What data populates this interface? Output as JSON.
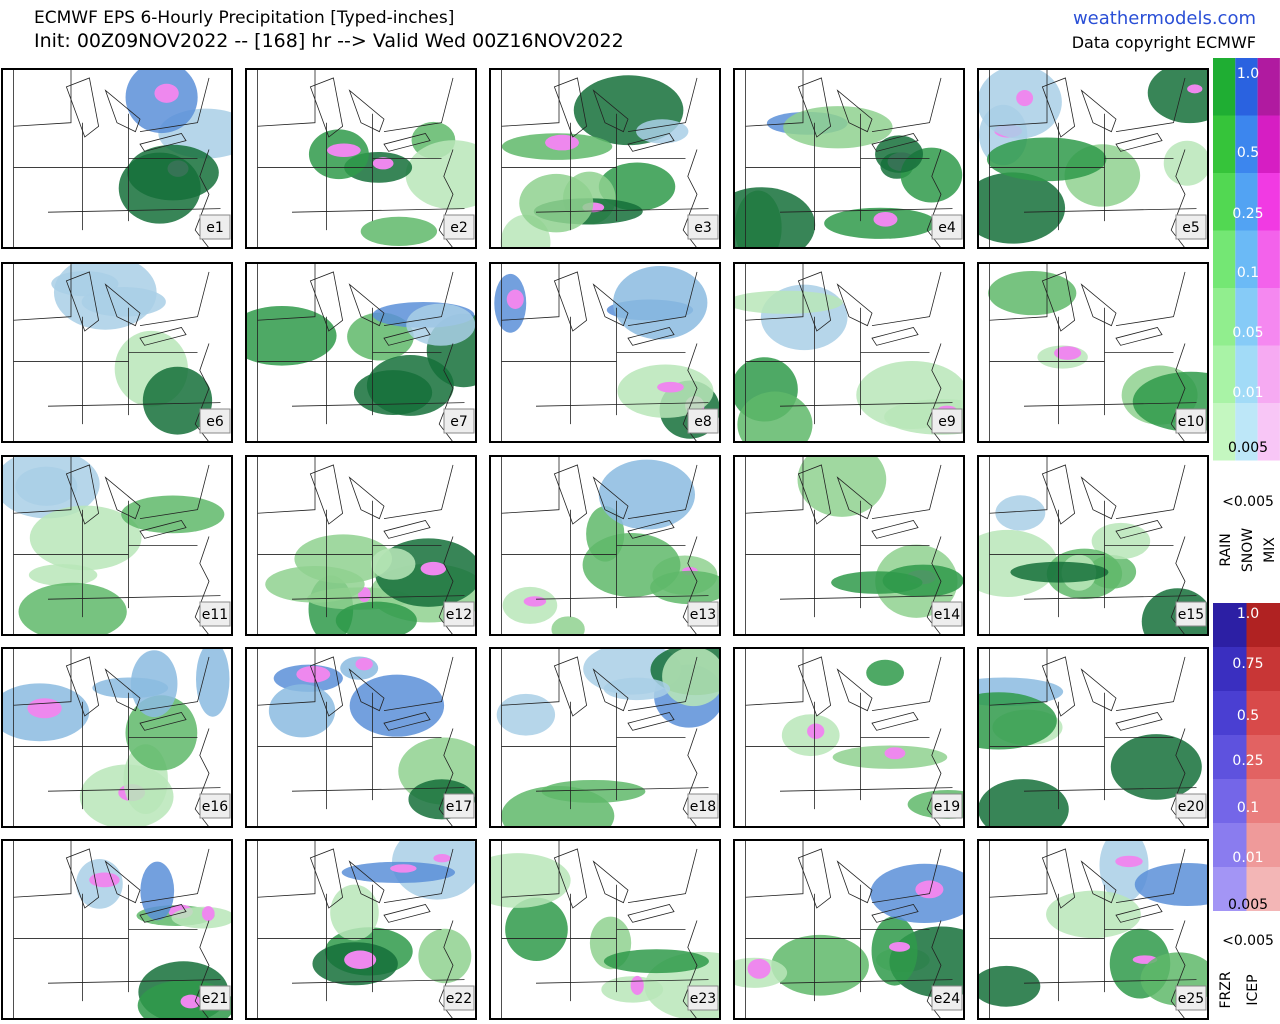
{
  "header": {
    "title": "ECMWF EPS 6-Hourly Precipitation [Typed-inches]",
    "init": "Init: 00Z09NOV2022 -- [168] hr --> Valid Wed 00Z16NOV2022",
    "site": "weathermodels.com",
    "copyright": "Data copyright ECMWF"
  },
  "panels": [
    "e1",
    "e2",
    "e3",
    "e4",
    "e5",
    "e6",
    "e7",
    "e8",
    "e9",
    "e10",
    "e11",
    "e12",
    "e13",
    "e14",
    "e15",
    "e16",
    "e17",
    "e18",
    "e19",
    "e20",
    "e21",
    "e22",
    "e23",
    "e24",
    "e25"
  ],
  "legend_top": {
    "labels": [
      "1.0",
      "0.5",
      "0.25",
      "0.1",
      "0.05",
      "0.01",
      "0.005"
    ],
    "below": "<0.005",
    "types": [
      "RAIN",
      "SNOW",
      "MIX"
    ]
  },
  "legend_bottom": {
    "labels": [
      "1.0",
      "0.75",
      "0.5",
      "0.25",
      "0.1",
      "0.01",
      "0.005"
    ],
    "below": "<0.005",
    "types": [
      "FRZR",
      "ICEP"
    ]
  }
}
